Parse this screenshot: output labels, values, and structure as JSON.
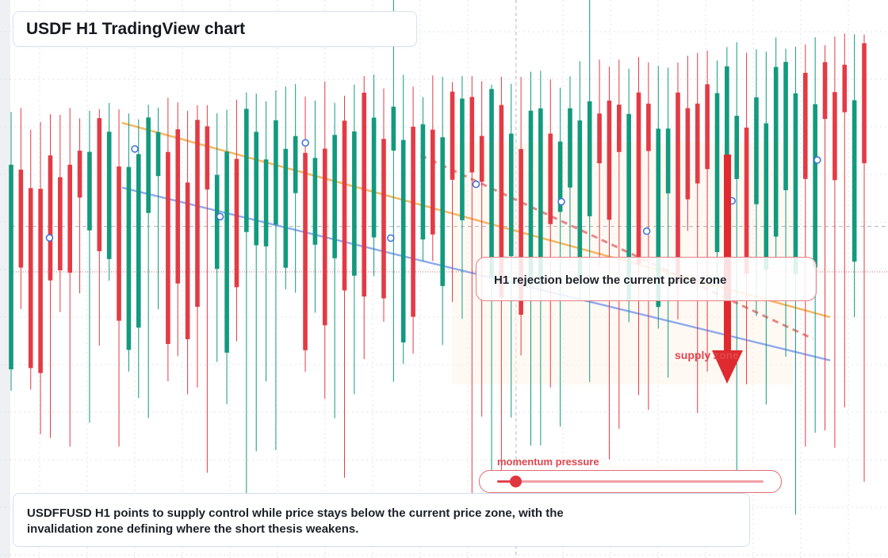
{
  "header": {
    "title": "USDF H1 TradingView chart"
  },
  "annotation": {
    "text": "H1 rejection below the current price zone"
  },
  "zone": {
    "label": "supply zone"
  },
  "momentum": {
    "label": "momentum pressure",
    "level": 0.07
  },
  "summary": {
    "text": "USDFFUSD H1 points to supply control while price stays below the current price zone, with the invalidation zone defining where the short thesis weakens."
  },
  "colors": {
    "bull": "#129a7e",
    "bear": "#e33b45",
    "trend_orange": "#f5b45a",
    "trend_blue": "#88a6ef",
    "resistance_red": "#e57373",
    "accent": "#e0464f"
  },
  "icons": {
    "arrow": "down-arrow-icon",
    "markers": "circle-marker-icon"
  },
  "chart_data": {
    "type": "candlestick",
    "symbol": "USDFFUSD",
    "timeframe": "H1",
    "title": "USDF H1 TradingView chart",
    "xlabel": "",
    "ylabel": "",
    "grid": true,
    "candles_summary": {
      "count": 88,
      "early_range": [
        0.905,
        1.035
      ],
      "late_range": [
        0.93,
        1.05
      ],
      "shape": "wide ranging candles; tops mostly near 1.00 early, near 1.035 late"
    },
    "trendlines": [
      {
        "name": "",
        "color": "#f5b45a",
        "from": [
          0.13,
          1.0
        ],
        "to": [
          0.96,
          0.91
        ]
      },
      {
        "name": "",
        "color": "#88a6ef",
        "from": [
          0.13,
          0.97
        ],
        "to": [
          0.96,
          0.89
        ]
      },
      {
        "name": "",
        "color": "#e57373",
        "from": [
          0.48,
          0.985
        ],
        "to": [
          0.94,
          0.9
        ],
        "dashed": true
      }
    ],
    "levels": [
      {
        "name": "",
        "value": 0.952,
        "style": "dashed"
      },
      {
        "name": "",
        "value": 0.931,
        "style": "dotted"
      }
    ],
    "signal": {
      "direction": "down",
      "label": "supply zone"
    }
  }
}
